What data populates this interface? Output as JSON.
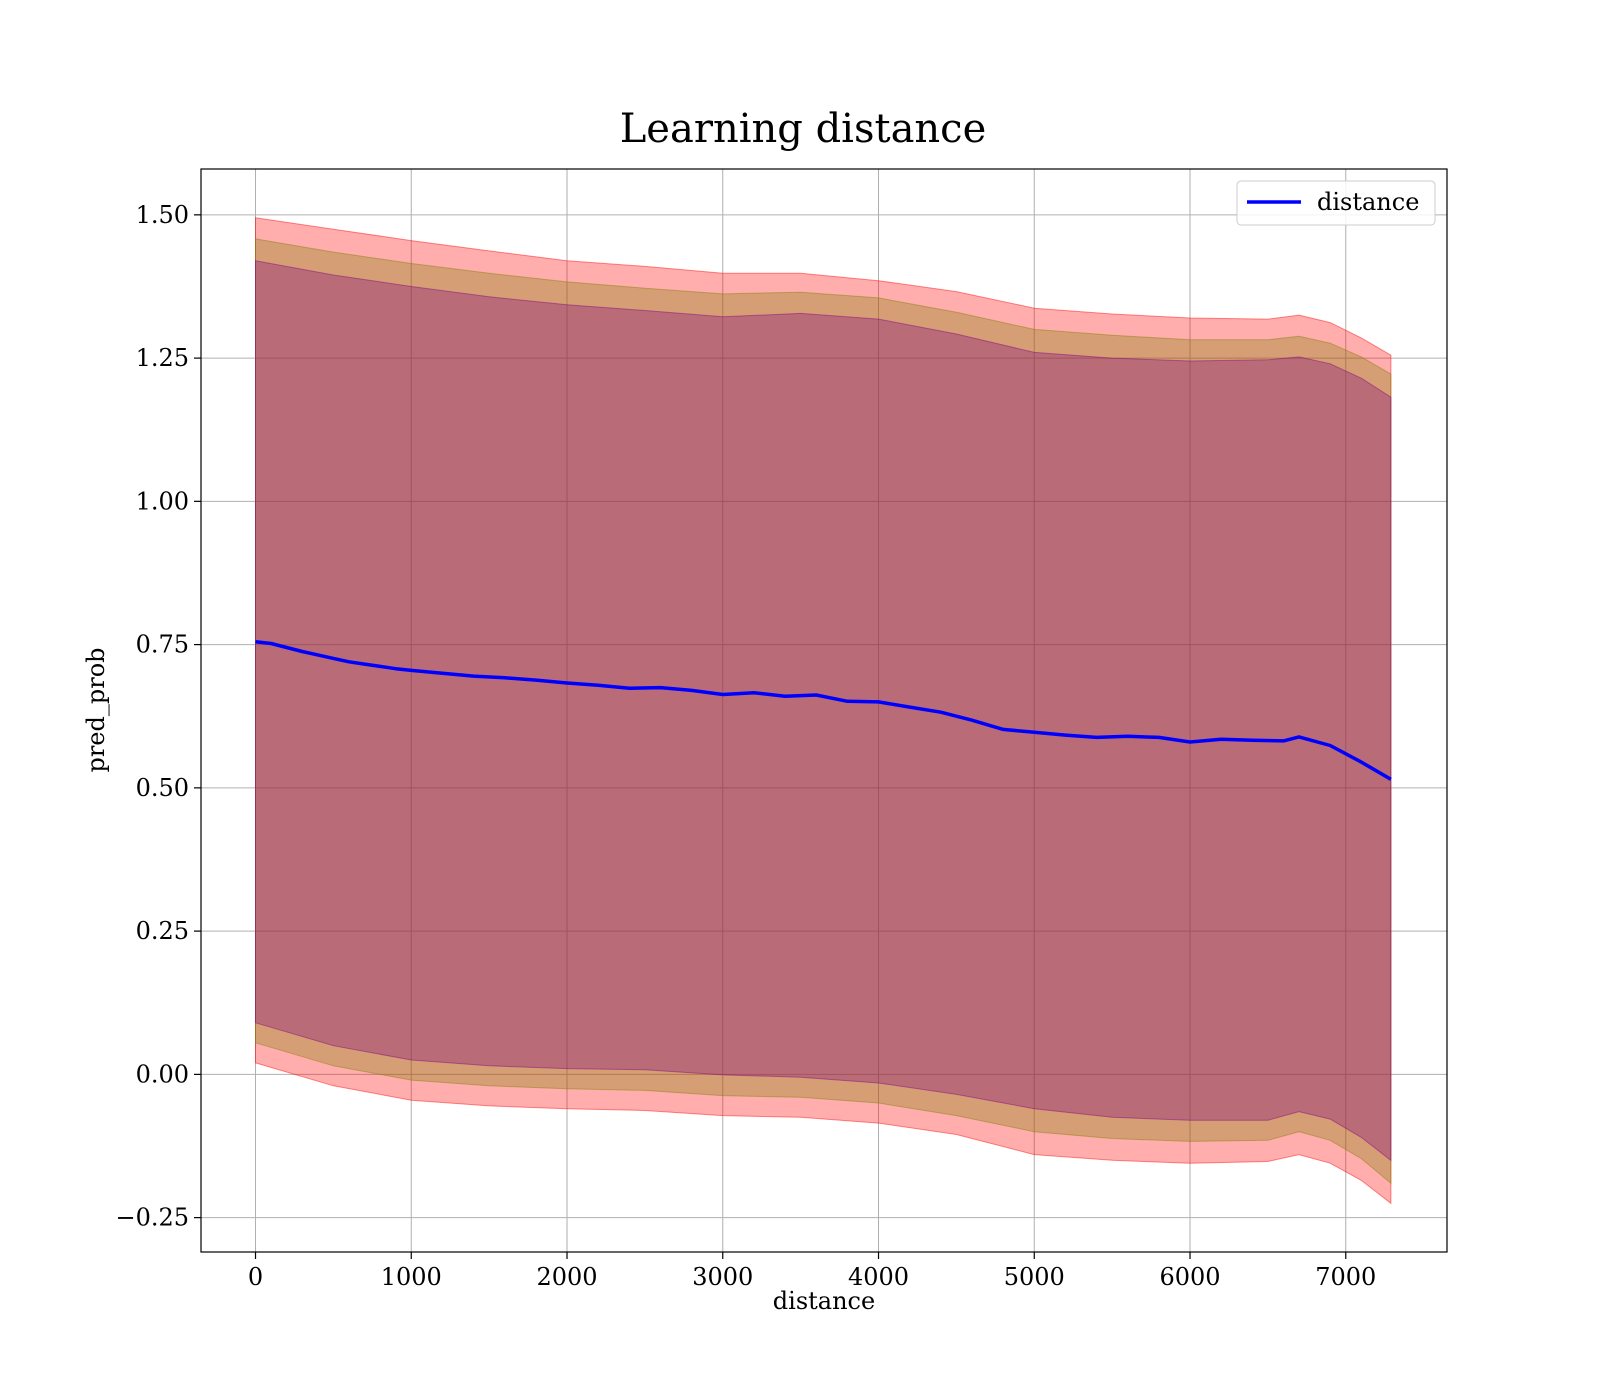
{
  "chart_data": {
    "type": "line",
    "title": "Learning distance",
    "xlabel": "distance",
    "ylabel": "pred_prob",
    "xlim": [
      -350,
      7650
    ],
    "ylim": [
      -0.31,
      1.58
    ],
    "x_ticks": [
      0,
      1000,
      2000,
      3000,
      4000,
      5000,
      6000,
      7000
    ],
    "x_tick_labels": [
      "0",
      "1000",
      "2000",
      "3000",
      "4000",
      "5000",
      "6000",
      "7000"
    ],
    "y_ticks": [
      -0.25,
      0.0,
      0.25,
      0.5,
      0.75,
      1.0,
      1.25,
      1.5
    ],
    "y_tick_labels": [
      "−0.25",
      "0.00",
      "0.25",
      "0.50",
      "0.75",
      "1.00",
      "1.25",
      "1.50"
    ],
    "grid": true,
    "legend_position": "top-right",
    "series": [
      {
        "name": "distance",
        "color": "#0000ff",
        "x": [
          0,
          100,
          200,
          300,
          400,
          500,
          600,
          700,
          800,
          900,
          1000,
          1200,
          1400,
          1600,
          1800,
          2000,
          2200,
          2400,
          2600,
          2800,
          3000,
          3200,
          3400,
          3600,
          3800,
          4000,
          4200,
          4400,
          4600,
          4800,
          5000,
          5200,
          5400,
          5600,
          5800,
          6000,
          6200,
          6400,
          6600,
          6700,
          6900,
          7100,
          7290
        ],
        "y": [
          0.755,
          0.752,
          0.745,
          0.738,
          0.732,
          0.726,
          0.72,
          0.716,
          0.712,
          0.708,
          0.705,
          0.7,
          0.695,
          0.692,
          0.688,
          0.683,
          0.679,
          0.674,
          0.675,
          0.67,
          0.663,
          0.666,
          0.66,
          0.662,
          0.651,
          0.65,
          0.641,
          0.632,
          0.618,
          0.602,
          0.597,
          0.592,
          0.588,
          0.59,
          0.588,
          0.58,
          0.585,
          0.583,
          0.582,
          0.589,
          0.574,
          0.545,
          0.515
        ]
      }
    ],
    "bands": [
      {
        "color": "#ff0000",
        "opacity": 0.32,
        "x": [
          0,
          500,
          1000,
          1500,
          2000,
          2500,
          3000,
          3500,
          4000,
          4500,
          5000,
          5500,
          6000,
          6500,
          6700,
          6900,
          7100,
          7290
        ],
        "upper": [
          1.495,
          1.475,
          1.455,
          1.437,
          1.42,
          1.41,
          1.398,
          1.398,
          1.385,
          1.366,
          1.337,
          1.327,
          1.32,
          1.318,
          1.325,
          1.312,
          1.285,
          1.255
        ],
        "lower": [
          0.02,
          -0.02,
          -0.045,
          -0.055,
          -0.06,
          -0.063,
          -0.072,
          -0.075,
          -0.085,
          -0.105,
          -0.14,
          -0.15,
          -0.155,
          -0.152,
          -0.14,
          -0.155,
          -0.185,
          -0.225
        ]
      },
      {
        "color": "#808000",
        "opacity": 0.32,
        "x": [
          0,
          500,
          1000,
          1500,
          2000,
          2500,
          3000,
          3500,
          4000,
          4500,
          5000,
          5500,
          6000,
          6500,
          6700,
          6900,
          7100,
          7290
        ],
        "upper": [
          1.458,
          1.435,
          1.415,
          1.398,
          1.383,
          1.372,
          1.362,
          1.365,
          1.355,
          1.33,
          1.3,
          1.29,
          1.282,
          1.282,
          1.288,
          1.276,
          1.252,
          1.222
        ],
        "lower": [
          0.055,
          0.015,
          -0.01,
          -0.02,
          -0.025,
          -0.028,
          -0.037,
          -0.04,
          -0.05,
          -0.072,
          -0.1,
          -0.112,
          -0.117,
          -0.115,
          -0.1,
          -0.115,
          -0.147,
          -0.19
        ]
      },
      {
        "color": "#800080",
        "opacity": 0.32,
        "x": [
          0,
          500,
          1000,
          1500,
          2000,
          2500,
          3000,
          3500,
          4000,
          4500,
          5000,
          5500,
          6000,
          6500,
          6700,
          6900,
          7100,
          7290
        ],
        "upper": [
          1.42,
          1.395,
          1.375,
          1.357,
          1.343,
          1.333,
          1.322,
          1.328,
          1.318,
          1.292,
          1.26,
          1.25,
          1.245,
          1.247,
          1.252,
          1.24,
          1.215,
          1.182
        ],
        "lower": [
          0.09,
          0.05,
          0.025,
          0.015,
          0.01,
          0.008,
          -0.001,
          -0.005,
          -0.015,
          -0.035,
          -0.06,
          -0.075,
          -0.08,
          -0.08,
          -0.065,
          -0.078,
          -0.11,
          -0.15
        ]
      }
    ]
  }
}
